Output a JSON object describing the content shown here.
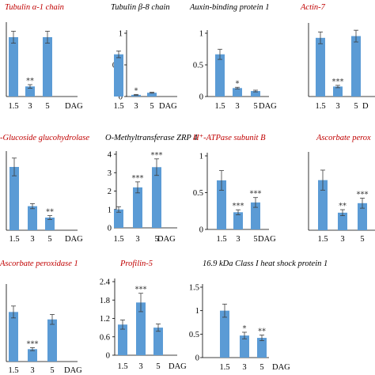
{
  "figure": {
    "bar_color": "#5b9bd5",
    "error_color": "#3d3d3d",
    "axis_color": "#000000",
    "red_title": "#c00000",
    "black_title": "#000000"
  },
  "chart_data": [
    {
      "type": "bar",
      "title": "Tubulin α-1 chain",
      "title_color": "red",
      "categories": [
        "1.5",
        "3",
        "5"
      ],
      "values": [
        1.0,
        0.17,
        1.0
      ],
      "errors": [
        0.1,
        0.03,
        0.1
      ],
      "sig": [
        "",
        "**",
        ""
      ],
      "ylim": [
        0,
        1.2
      ],
      "yticks": [],
      "xlabel": "DAG"
    },
    {
      "type": "bar",
      "title": "Tubulin β-8 chain",
      "title_color": "black",
      "categories": [
        "1.5",
        "3",
        "5"
      ],
      "values": [
        1.0,
        0.04,
        0.09
      ],
      "errors": [
        0.08,
        0.01,
        0.01
      ],
      "sig": [
        "",
        "*",
        ""
      ],
      "ylim": [
        0,
        1.5
      ],
      "yticks": [
        "0",
        "0.5",
        "1"
      ],
      "xlabel": "DAG"
    },
    {
      "type": "bar",
      "title": "Auxin-binding protein 1",
      "title_color": "black",
      "categories": [
        "1.5",
        "3",
        "5"
      ],
      "values": [
        1.0,
        0.2,
        0.13
      ],
      "errors": [
        0.12,
        0.02,
        0.02
      ],
      "sig": [
        "",
        "*",
        ""
      ],
      "ylim": [
        0,
        1.5
      ],
      "yticks": [
        "0",
        "0.5",
        "1"
      ],
      "xlabel": "DAG"
    },
    {
      "type": "bar",
      "title": "Actin-7",
      "title_color": "red",
      "categories": [
        "1.5",
        "3",
        "5"
      ],
      "values": [
        1.0,
        0.17,
        1.03
      ],
      "errors": [
        0.1,
        0.02,
        0.1
      ],
      "sig": [
        "",
        "***",
        ""
      ],
      "ylim": [
        0,
        1.2
      ],
      "yticks": [],
      "xlabel": "D"
    },
    {
      "type": "bar",
      "title": "-Glucoside glucohydrolase",
      "title_color": "red",
      "categories": [
        "1.5",
        "3",
        "5"
      ],
      "values": [
        1.0,
        0.38,
        0.2
      ],
      "errors": [
        0.14,
        0.04,
        0.03
      ],
      "sig": [
        "",
        "",
        "**"
      ],
      "ylim": [
        0,
        1.2
      ],
      "yticks": [],
      "xlabel": "DAG"
    },
    {
      "type": "bar",
      "title": "O-Methyltransferase ZRP 4",
      "title_color": "black",
      "categories": [
        "1.5",
        "3",
        "5"
      ],
      "values": [
        1.0,
        2.2,
        3.3
      ],
      "errors": [
        0.15,
        0.3,
        0.45
      ],
      "sig": [
        "",
        "***",
        "***"
      ],
      "ylim": [
        0,
        4
      ],
      "yticks": [
        "0",
        "1",
        "2",
        "3",
        "4"
      ],
      "xlabel": "DAG"
    },
    {
      "type": "bar",
      "title": "H⁺-ATPase subunit B",
      "title_color": "red",
      "categories": [
        "1.5",
        "3",
        "5"
      ],
      "values": [
        1.0,
        0.35,
        0.55
      ],
      "errors": [
        0.2,
        0.05,
        0.1
      ],
      "sig": [
        "",
        "***",
        "***"
      ],
      "ylim": [
        0,
        1.5
      ],
      "yticks": [
        "0",
        "0.5",
        "1"
      ],
      "xlabel": "DAG"
    },
    {
      "type": "bar",
      "title": "Ascorbate perox",
      "title_color": "red",
      "categories": [
        "1.5",
        "3",
        "5"
      ],
      "values": [
        1.0,
        0.35,
        0.54
      ],
      "errors": [
        0.2,
        0.06,
        0.1
      ],
      "sig": [
        "",
        "**",
        "***"
      ],
      "ylim": [
        0,
        1.5
      ],
      "yticks": [],
      "xlabel": ""
    },
    {
      "type": "bar",
      "title": "Ascorbate peroxidase 1",
      "title_color": "red",
      "categories": [
        "1.5",
        "3",
        "5"
      ],
      "values": [
        1.0,
        0.25,
        0.85
      ],
      "errors": [
        0.12,
        0.03,
        0.1
      ],
      "sig": [
        "",
        "***",
        ""
      ],
      "ylim": [
        0,
        1.5
      ],
      "yticks": [],
      "xlabel": "DAG"
    },
    {
      "type": "bar",
      "title": "Profilin-5",
      "title_color": "red",
      "categories": [
        "1.5",
        "3",
        "5"
      ],
      "values": [
        1.0,
        1.72,
        0.9
      ],
      "errors": [
        0.15,
        0.3,
        0.12
      ],
      "sig": [
        "",
        "***",
        ""
      ],
      "ylim": [
        0,
        2.4
      ],
      "yticks": [
        "0",
        "0.6",
        "1.2",
        "1.8",
        "2.4"
      ],
      "xlabel": "DAG"
    },
    {
      "type": "bar",
      "title": "16.9 kDa Class I heat shock protein 1",
      "title_color": "black",
      "categories": [
        "1.5",
        "3",
        "5"
      ],
      "values": [
        1.0,
        0.47,
        0.42
      ],
      "errors": [
        0.14,
        0.07,
        0.06
      ],
      "sig": [
        "",
        "*",
        "**"
      ],
      "ylim": [
        0,
        1.5
      ],
      "yticks": [
        "0",
        "0.5",
        "1",
        "1.5"
      ],
      "xlabel": "DAG"
    }
  ]
}
